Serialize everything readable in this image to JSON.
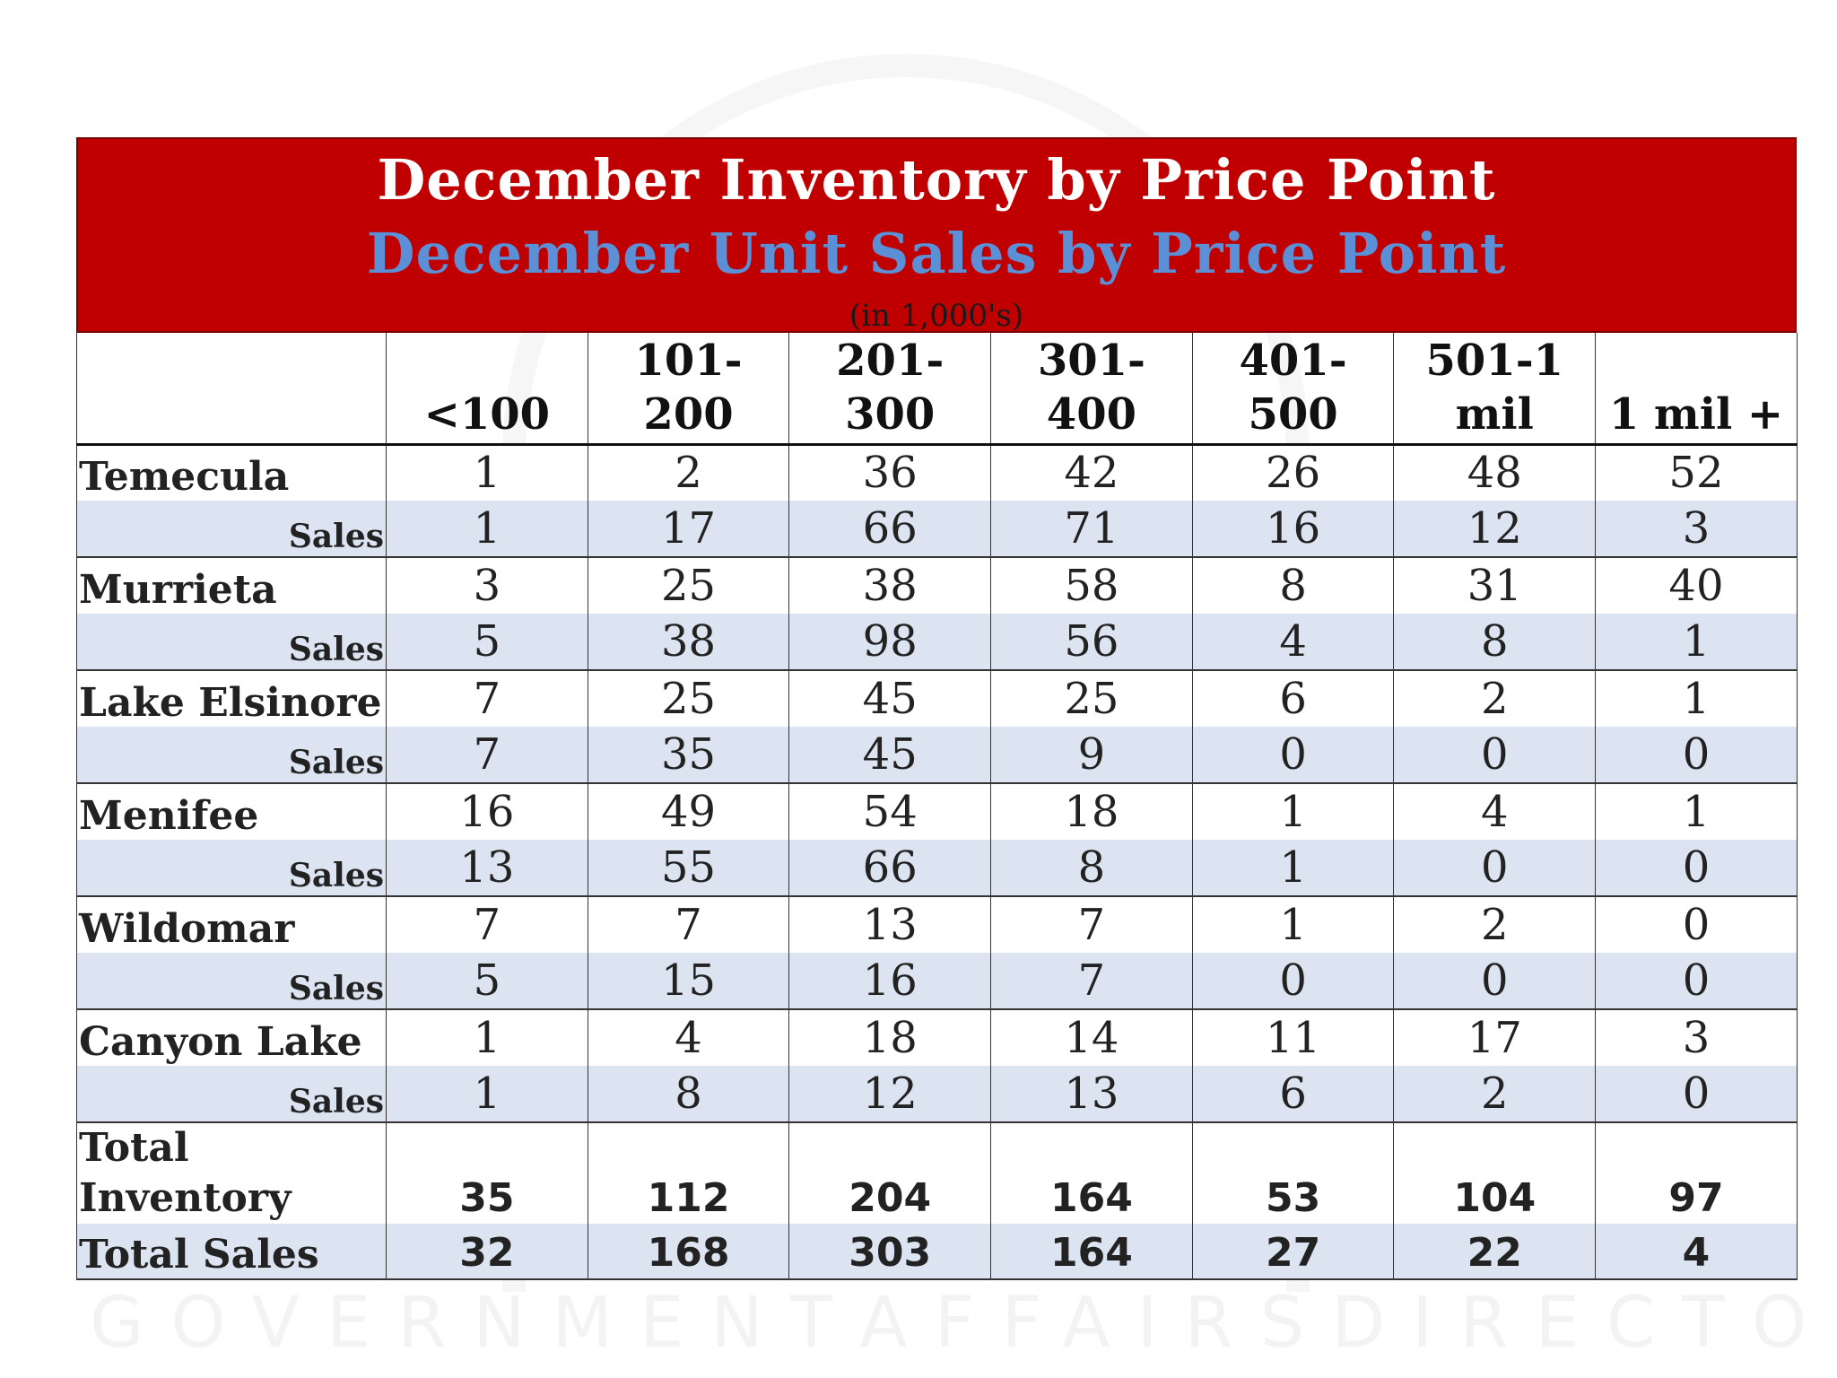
{
  "chart_data": {
    "type": "table",
    "title": "December Inventory by Price Point",
    "subtitle": "December Unit Sales by Price Point",
    "unit_note": "(in 1,000's)",
    "columns": [
      "<100",
      "101-\n200",
      "201-\n300",
      "301-\n400",
      "401-\n500",
      "501-1\nmil",
      "1 mil +"
    ],
    "sales_label": "Sales",
    "rows": [
      {
        "city": "Temecula",
        "inventory": [
          "1",
          "2",
          "36",
          "42",
          "26",
          "48",
          "52"
        ],
        "sales": [
          "1",
          "17",
          "66",
          "71",
          "16",
          "12",
          "3"
        ]
      },
      {
        "city": "Murrieta",
        "inventory": [
          "3",
          "25",
          "38",
          "58",
          "8",
          "31",
          "40"
        ],
        "sales": [
          "5",
          "38",
          "98",
          "56",
          "4",
          "8",
          "1"
        ]
      },
      {
        "city": "Lake Elsinore",
        "inventory": [
          "7",
          "25",
          "45",
          "25",
          "6",
          "2",
          "1"
        ],
        "sales": [
          "7",
          "35",
          "45",
          "9",
          "0",
          "0",
          "0"
        ]
      },
      {
        "city": "Menifee",
        "inventory": [
          "16",
          "49",
          "54",
          "18",
          "1",
          "4",
          "1"
        ],
        "sales": [
          "13",
          "55",
          "66",
          "8",
          "1",
          "0",
          "0"
        ]
      },
      {
        "city": "Wildomar",
        "inventory": [
          "7",
          "7",
          "13",
          "7",
          "1",
          "2",
          "0"
        ],
        "sales": [
          "5",
          "15",
          "16",
          "7",
          "0",
          "0",
          "0"
        ]
      },
      {
        "city": "Canyon Lake",
        "inventory": [
          "1",
          "4",
          "18",
          "14",
          "11",
          "17",
          "3"
        ],
        "sales": [
          "1",
          "8",
          "12",
          "13",
          "6",
          "2",
          "0"
        ]
      }
    ],
    "total_inventory": {
      "label": "Total\nInventory",
      "values": [
        "35",
        "112",
        "204",
        "164",
        "53",
        "104",
        "97"
      ]
    },
    "total_sales": {
      "label": "Total Sales",
      "values": [
        "32",
        "168",
        "303",
        "164",
        "27",
        "22",
        "4"
      ]
    }
  },
  "watermark": [
    "GOVERNMENT",
    "AFFAIRS",
    "DIRECTOR"
  ]
}
